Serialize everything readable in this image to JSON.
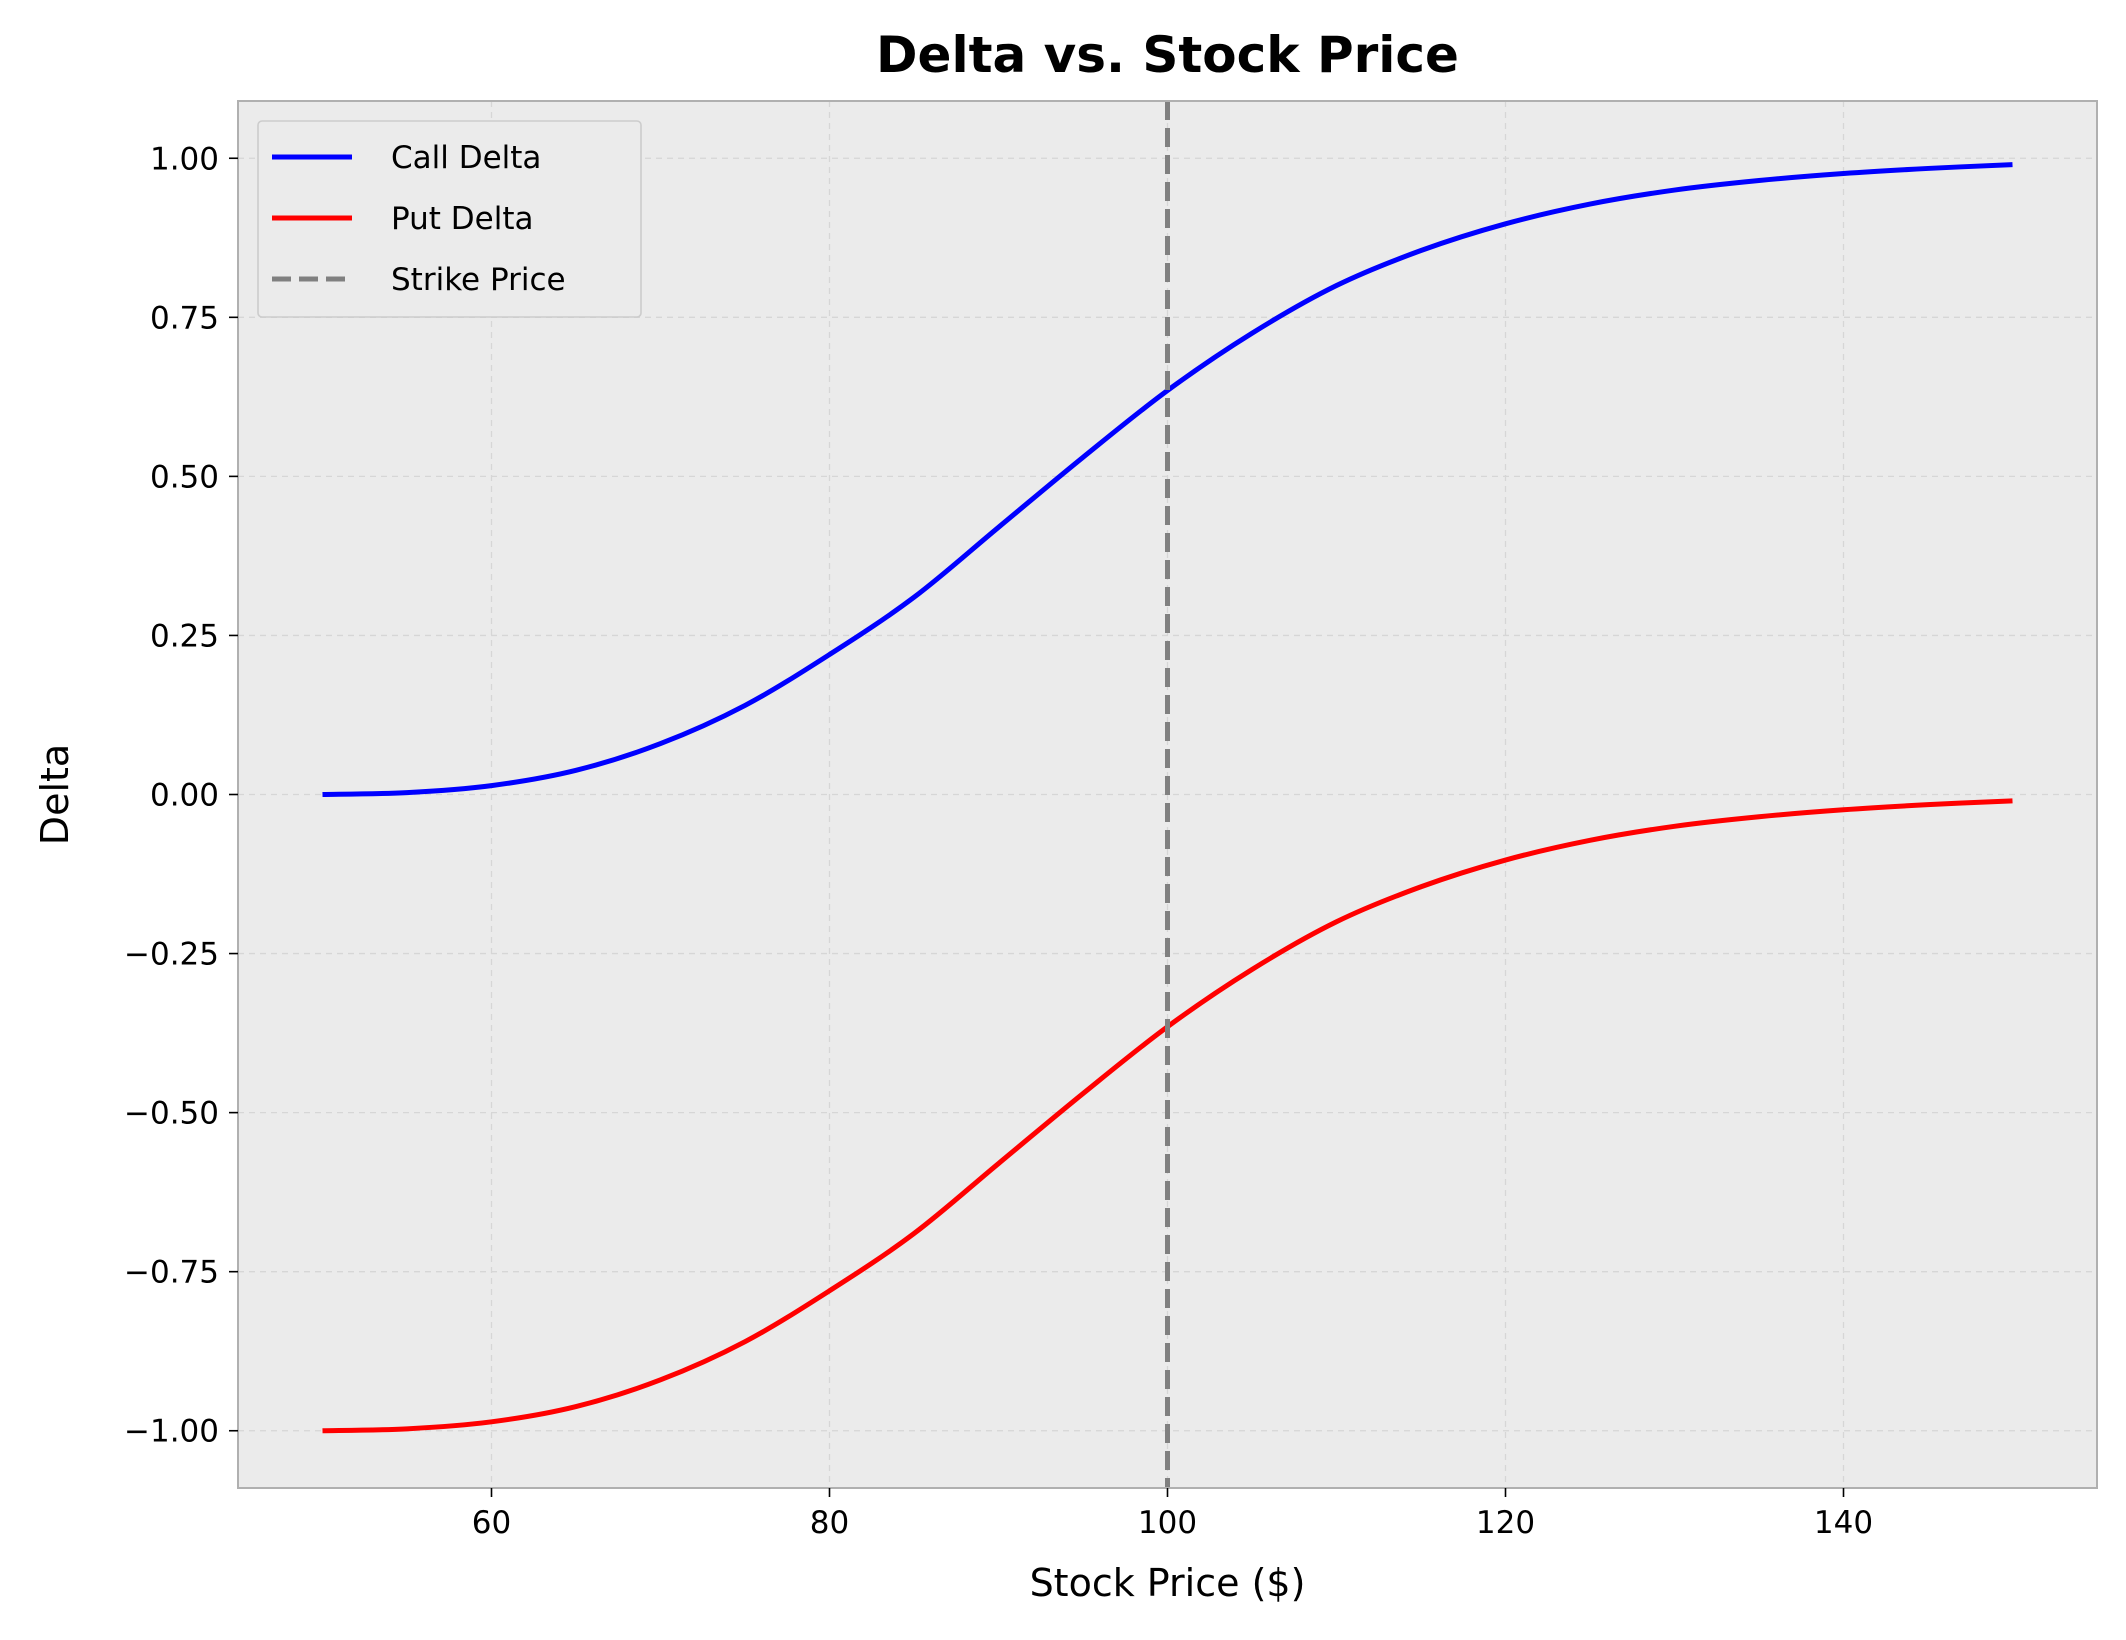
{
  "chart_data": {
    "type": "line",
    "title": "Delta vs. Stock Price",
    "xlabel": "Stock Price ($)",
    "ylabel": "Delta",
    "xlim": [
      45,
      155
    ],
    "ylim": [
      -1.09,
      1.09
    ],
    "x_ticks": [
      60,
      80,
      100,
      120,
      140
    ],
    "x_tick_labels": [
      "60",
      "80",
      "100",
      "120",
      "140"
    ],
    "y_ticks": [
      1.0,
      0.75,
      0.5,
      0.25,
      0.0,
      -0.25,
      -0.5,
      -0.75,
      -1.0
    ],
    "y_tick_labels": [
      "1.00",
      "0.75",
      "0.50",
      "0.25",
      "0.00",
      "−0.25",
      "−0.50",
      "−0.75",
      "−1.00"
    ],
    "grid": true,
    "legend_position": "top-left",
    "background_color": "#ebebeb",
    "x": [
      50,
      55,
      60,
      65,
      70,
      75,
      80,
      85,
      90,
      95,
      100,
      105,
      110,
      115,
      120,
      125,
      130,
      135,
      140,
      145,
      150
    ],
    "series": [
      {
        "name": "Call Delta",
        "color": "#0000ff",
        "style": "solid",
        "values": [
          0.0,
          0.003,
          0.014,
          0.038,
          0.08,
          0.14,
          0.22,
          0.31,
          0.42,
          0.53,
          0.635,
          0.725,
          0.8,
          0.855,
          0.897,
          0.928,
          0.95,
          0.965,
          0.976,
          0.984,
          0.99
        ]
      },
      {
        "name": "Put Delta",
        "color": "#ff0000",
        "style": "solid",
        "values": [
          -1.0,
          -0.997,
          -0.986,
          -0.962,
          -0.92,
          -0.86,
          -0.78,
          -0.69,
          -0.58,
          -0.47,
          -0.365,
          -0.275,
          -0.2,
          -0.145,
          -0.103,
          -0.072,
          -0.05,
          -0.035,
          -0.024,
          -0.016,
          -0.01
        ]
      },
      {
        "name": "Strike Price",
        "color": "#808080",
        "style": "dashed",
        "x_value": 100
      }
    ]
  }
}
